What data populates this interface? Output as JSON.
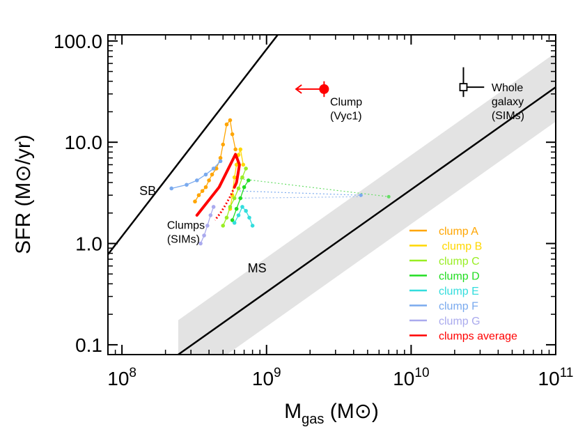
{
  "chart_data": {
    "type": "scatter",
    "xscale": "log",
    "yscale": "log",
    "xlim": [
      80000000,
      100000000000
    ],
    "ylim": [
      0.08,
      115
    ],
    "xlabel": {
      "main": "M",
      "sub": "gas",
      "unit": "(M⊙)"
    },
    "ylabel": "SFR (M⊙/yr)",
    "xticks": [
      {
        "value": 100000000,
        "base": "10",
        "exp": "8"
      },
      {
        "value": 1000000000,
        "base": "10",
        "exp": "9"
      },
      {
        "value": 10000000000,
        "base": "10",
        "exp": "10"
      },
      {
        "value": 100000000000,
        "base": "10",
        "exp": "11"
      }
    ],
    "yticks": [
      {
        "value": 0.1,
        "label": "0.1"
      },
      {
        "value": 1,
        "label": "1.0"
      },
      {
        "value": 10,
        "label": "10.0"
      },
      {
        "value": 100,
        "label": "100.0"
      }
    ],
    "relations": [
      {
        "name": "SB",
        "label": "SB",
        "x": [
          80000000,
          1250000000
        ],
        "y": [
          0.78,
          125
        ],
        "label_at": [
          132000000,
          3.0
        ],
        "color": "#000000"
      },
      {
        "name": "MS",
        "label": "MS",
        "x": [
          245000000,
          100000000000
        ],
        "y": [
          0.08,
          35
        ],
        "label_at": [
          740000000,
          0.52
        ],
        "color": "#000000",
        "band_dex": 0.34,
        "band_color": "#e3e3e3"
      }
    ],
    "points": [
      {
        "name": "clump-vyc1",
        "label": [
          "Clump",
          "(Vyc1)"
        ],
        "x": 2500000000,
        "y": 33.5,
        "color": "#ff0000",
        "yerr": [
          28,
          40
        ],
        "upper_limit_to": 1600000000,
        "label_at": [
          2750000000,
          23
        ]
      },
      {
        "name": "whole-galaxy-sims",
        "label": [
          "Whole",
          "galaxy",
          "(SIMs)"
        ],
        "x": 23000000000,
        "y": 35,
        "color": "#000000",
        "yerr": [
          28,
          55
        ],
        "xerr": [
          23000000000,
          32000000000
        ],
        "label_at": [
          36000000000,
          32
        ]
      }
    ],
    "annotations": [
      {
        "name": "clumps-sims-label",
        "lines": [
          "Clumps",
          "(SIMs)"
        ],
        "at": [
          205000000,
          1.4
        ]
      }
    ],
    "series": [
      {
        "name": "clump A",
        "color": "#ffa500",
        "x": [
          320000000,
          340000000,
          360000000,
          380000000,
          400000000,
          420000000,
          450000000,
          480000000,
          500000000,
          530000000,
          560000000,
          580000000,
          610000000
        ],
        "y": [
          2.6,
          3.0,
          3.3,
          3.6,
          4.2,
          4.8,
          5.5,
          7.0,
          9.5,
          15.0,
          16.5,
          12.0,
          8.5
        ]
      },
      {
        "name": "clump B",
        "color": "#ffd700",
        "x": [
          560000000,
          580000000,
          600000000,
          620000000,
          640000000,
          660000000,
          690000000
        ],
        "y": [
          2.2,
          3.0,
          4.5,
          6.0,
          7.5,
          8.5,
          6.0
        ]
      },
      {
        "name": "clump C",
        "color": "#99ee22",
        "x": [
          500000000,
          530000000,
          560000000,
          600000000,
          640000000,
          680000000,
          720000000
        ],
        "y": [
          1.5,
          1.8,
          2.3,
          2.8,
          3.5,
          4.5,
          5.5
        ]
      },
      {
        "name": "clump D",
        "color": "#22dd22",
        "x": [
          580000000,
          620000000,
          660000000,
          700000000,
          750000000
        ],
        "y": [
          1.7,
          2.2,
          2.8,
          3.6,
          4.2
        ]
      },
      {
        "name": "clump E",
        "color": "#33dddd",
        "x": [
          600000000,
          640000000,
          680000000,
          720000000,
          760000000,
          800000000
        ],
        "y": [
          1.6,
          1.9,
          2.3,
          2.1,
          1.8,
          1.5
        ]
      },
      {
        "name": "clump F",
        "color": "#7aaaee",
        "x": [
          220000000,
          280000000,
          330000000,
          380000000,
          430000000,
          480000000
        ],
        "y": [
          3.5,
          3.8,
          4.2,
          4.8,
          5.5,
          6.5
        ]
      },
      {
        "name": "clump G",
        "color": "#aaaaee",
        "x": [
          350000000,
          370000000,
          390000000,
          410000000,
          430000000
        ],
        "y": [
          1.0,
          1.2,
          1.5,
          1.9,
          2.3
        ]
      }
    ],
    "dotted_links": [
      {
        "from": [
          620000000,
          4.4
        ],
        "to": [
          7000000000,
          2.9
        ],
        "color": "#66dd66"
      },
      {
        "from": [
          650000000,
          3.3
        ],
        "to": [
          4500000000,
          3.0
        ],
        "color": "#7aaaee"
      },
      {
        "from": [
          600000000,
          2.8
        ],
        "to": [
          4500000000,
          2.9
        ],
        "color": "#99bbee"
      }
    ],
    "far_points": [
      {
        "x": 7000000000,
        "y": 2.9,
        "color": "#66dd66"
      },
      {
        "x": 4500000000,
        "y": 3.0,
        "color": "#7aaaee"
      }
    ],
    "average": {
      "name": "clumps average",
      "color": "#ff0000",
      "solid": {
        "x": [
          330000000,
          470000000,
          610000000,
          650000000,
          620000000,
          600000000
        ],
        "y": [
          1.9,
          3.6,
          7.6,
          6.0,
          4.0,
          3.6
        ]
      },
      "dotted": {
        "x": [
          600000000,
          560000000,
          520000000,
          480000000,
          440000000
        ],
        "y": [
          3.6,
          2.9,
          2.4,
          2.0,
          1.7
        ]
      }
    },
    "legend": {
      "position": "bottom-right",
      "entries": [
        {
          "label": "clump A",
          "color": "#ffa500"
        },
        {
          "label": " clump B",
          "color": "#ffd700"
        },
        {
          "label": "clump C",
          "color": "#99ee22"
        },
        {
          "label": "clump D",
          "color": "#22dd22"
        },
        {
          "label": "clump E",
          "color": "#33dddd"
        },
        {
          "label": "clump F",
          "color": "#7aaaee"
        },
        {
          "label": "clump G",
          "color": "#aaaaee"
        },
        {
          "label": "clumps average",
          "color": "#ff0000"
        }
      ]
    }
  }
}
